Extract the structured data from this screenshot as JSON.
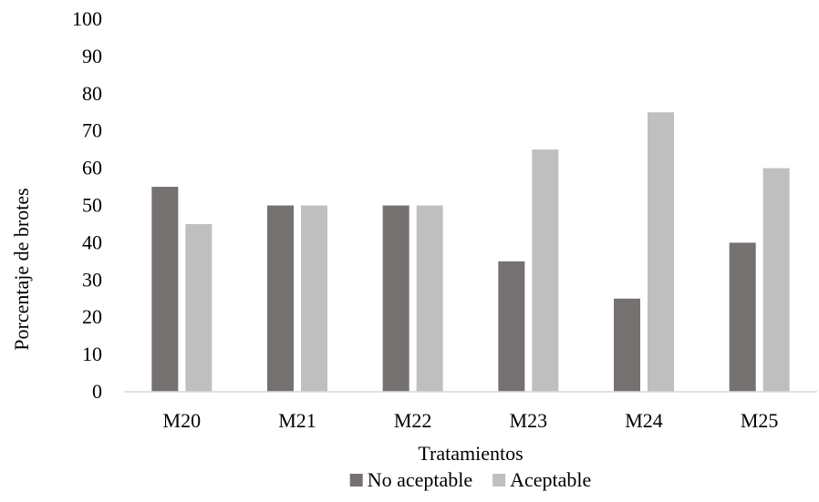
{
  "chart_data": {
    "type": "bar",
    "title": "",
    "xlabel": "Tratamientos",
    "ylabel": "Porcentaje de brotes",
    "categories": [
      "M20",
      "M21",
      "M22",
      "M23",
      "M24",
      "M25"
    ],
    "series": [
      {
        "name": "No aceptable",
        "values": [
          55,
          50,
          50,
          35,
          25,
          40
        ],
        "color": "#767171"
      },
      {
        "name": "Aceptable",
        "values": [
          45,
          50,
          50,
          65,
          75,
          60
        ],
        "color": "#bfbfbf"
      }
    ],
    "ylim": [
      0,
      100
    ],
    "yticks": [
      0,
      10,
      20,
      30,
      40,
      50,
      60,
      70,
      80,
      90,
      100
    ],
    "grid": false,
    "legend_position": "bottom"
  }
}
